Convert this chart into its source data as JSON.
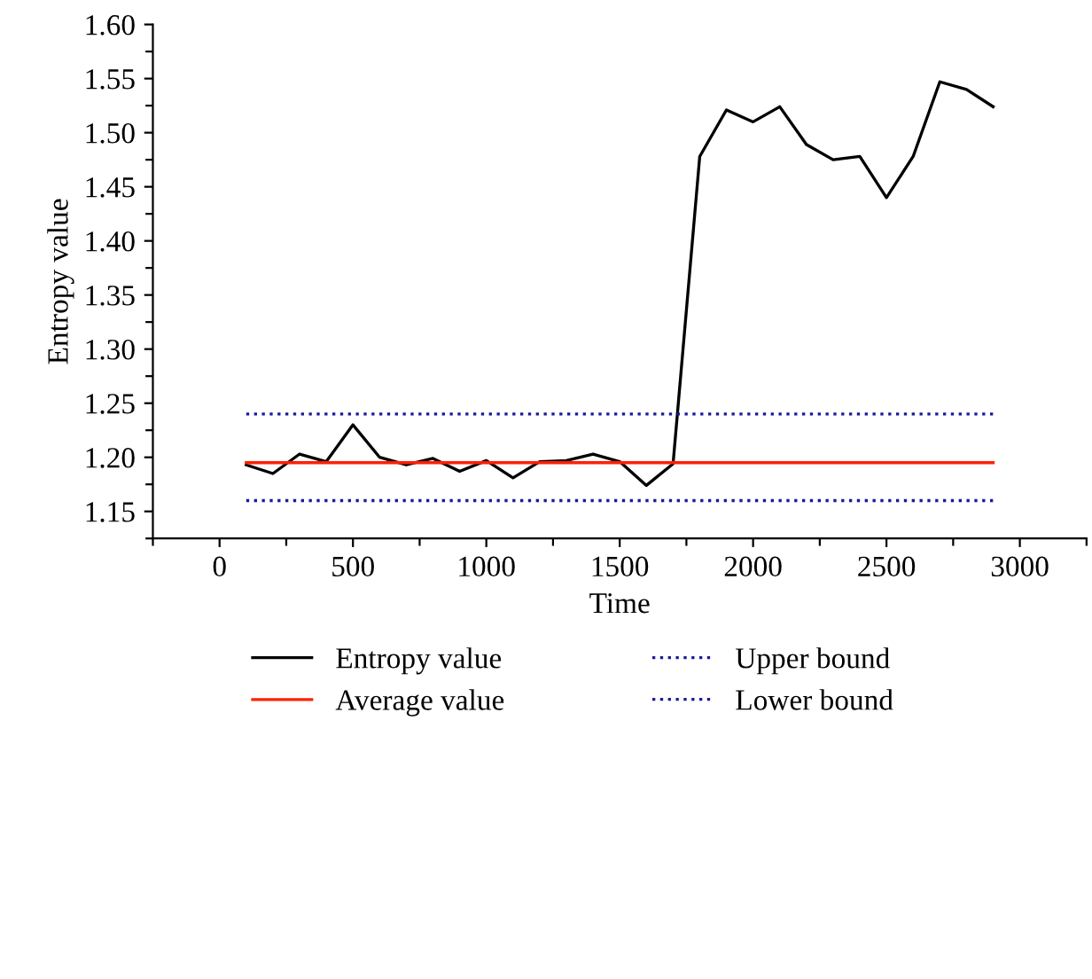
{
  "chart_data": {
    "type": "line",
    "xlabel": "Time",
    "ylabel": "Entropy value",
    "xlim": [
      -250,
      3250
    ],
    "ylim": [
      1.125,
      1.6
    ],
    "xticks": [
      {
        "value": -250,
        "label": null
      },
      0,
      {
        "value": 250,
        "label": null
      },
      500,
      {
        "value": 750,
        "label": null
      },
      1000,
      {
        "value": 1250,
        "label": null
      },
      1500,
      {
        "value": 1750,
        "label": null
      },
      2000,
      {
        "value": 2250,
        "label": null
      },
      2500,
      {
        "value": 2750,
        "label": null
      },
      3000,
      {
        "value": 3250,
        "label": null
      }
    ],
    "yticks": [
      {
        "value": 1.125,
        "label": null
      },
      {
        "value": 1.15,
        "label": "1.15"
      },
      {
        "value": 1.175,
        "label": null
      },
      {
        "value": 1.2,
        "label": "1.20"
      },
      {
        "value": 1.225,
        "label": null
      },
      {
        "value": 1.25,
        "label": "1.25"
      },
      {
        "value": 1.275,
        "label": null
      },
      {
        "value": 1.3,
        "label": "1.30"
      },
      {
        "value": 1.325,
        "label": null
      },
      {
        "value": 1.35,
        "label": "1.35"
      },
      {
        "value": 1.375,
        "label": null
      },
      {
        "value": 1.4,
        "label": "1.40"
      },
      {
        "value": 1.425,
        "label": null
      },
      {
        "value": 1.45,
        "label": "1.45"
      },
      {
        "value": 1.475,
        "label": null
      },
      {
        "value": 1.5,
        "label": "1.50"
      },
      {
        "value": 1.525,
        "label": null
      },
      {
        "value": 1.55,
        "label": "1.55"
      },
      {
        "value": 1.575,
        "label": null
      },
      {
        "value": 1.6,
        "label": "1.60"
      }
    ],
    "grid": false,
    "legend": "bottom",
    "marker": "none",
    "series": [
      {
        "name": "Entropy value",
        "color": "#000000",
        "line_style": "solid",
        "x": [
          100,
          200,
          300,
          400,
          500,
          600,
          700,
          800,
          900,
          1000,
          1100,
          1200,
          1300,
          1400,
          1500,
          1600,
          1700,
          1800,
          1900,
          2000,
          2100,
          2200,
          2300,
          2400,
          2500,
          2600,
          2700,
          2800,
          2900
        ],
        "values": [
          1.193,
          1.185,
          1.203,
          1.196,
          1.23,
          1.2,
          1.193,
          1.199,
          1.187,
          1.197,
          1.181,
          1.196,
          1.197,
          1.203,
          1.196,
          1.174,
          1.194,
          1.478,
          1.521,
          1.51,
          1.524,
          1.489,
          1.475,
          1.478,
          1.44,
          1.478,
          1.547,
          1.54,
          1.524
        ]
      },
      {
        "name": "Average value",
        "color": "#ff2000",
        "line_style": "solid",
        "x": [
          100,
          2900
        ],
        "values": [
          1.195,
          1.195
        ]
      },
      {
        "name": "Upper bound",
        "color": "#1a1a9a",
        "line_style": "dotted",
        "x": [
          100,
          2900
        ],
        "values": [
          1.24,
          1.24
        ]
      },
      {
        "name": "Lower bound",
        "color": "#1a1a9a",
        "line_style": "dotted",
        "x": [
          100,
          2900
        ],
        "values": [
          1.16,
          1.16
        ]
      }
    ]
  }
}
